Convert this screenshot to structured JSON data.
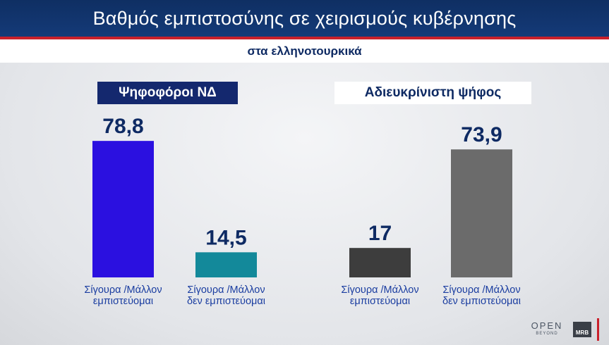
{
  "title": "Βαθμός εμπιστοσύνης σε χειρισμούς κυβέρνησης",
  "subtitle": "στα ελληνοτουρκικά",
  "groups": {
    "nd": "Ψηφοφόροι ΝΔ",
    "undecided": "Αδιευκρίνιστη ψήφος"
  },
  "logos": {
    "open": "OPEN",
    "beyond": "BEYOND",
    "mrb": "MRB"
  },
  "chart_data": {
    "type": "bar",
    "ylim": [
      0,
      100
    ],
    "grid": false,
    "legend": "none",
    "bars": [
      {
        "group": "Ψηφοφόροι ΝΔ",
        "value": 78.8,
        "value_label": "78,8",
        "label_lines": [
          "Σίγουρα /Μάλλον",
          "εμπιστεύομαι"
        ],
        "color": "#2b10e0"
      },
      {
        "group": "Ψηφοφόροι ΝΔ",
        "value": 14.5,
        "value_label": "14,5",
        "label_lines": [
          "Σίγουρα /Μάλλον",
          "δεν εμπιστεύομαι"
        ],
        "color": "#13899a"
      },
      {
        "group": "Αδιευκρίνιστη ψήφος",
        "value": 17,
        "value_label": "17",
        "label_lines": [
          "Σίγουρα /Μάλλον",
          "εμπιστεύομαι"
        ],
        "color": "#3d3d3d"
      },
      {
        "group": "Αδιευκρίνιστη ψήφος",
        "value": 73.9,
        "value_label": "73,9",
        "label_lines": [
          "Σίγουρα /Μάλλον",
          "δεν εμπιστεύομαι"
        ],
        "color": "#6b6b6b"
      }
    ]
  }
}
